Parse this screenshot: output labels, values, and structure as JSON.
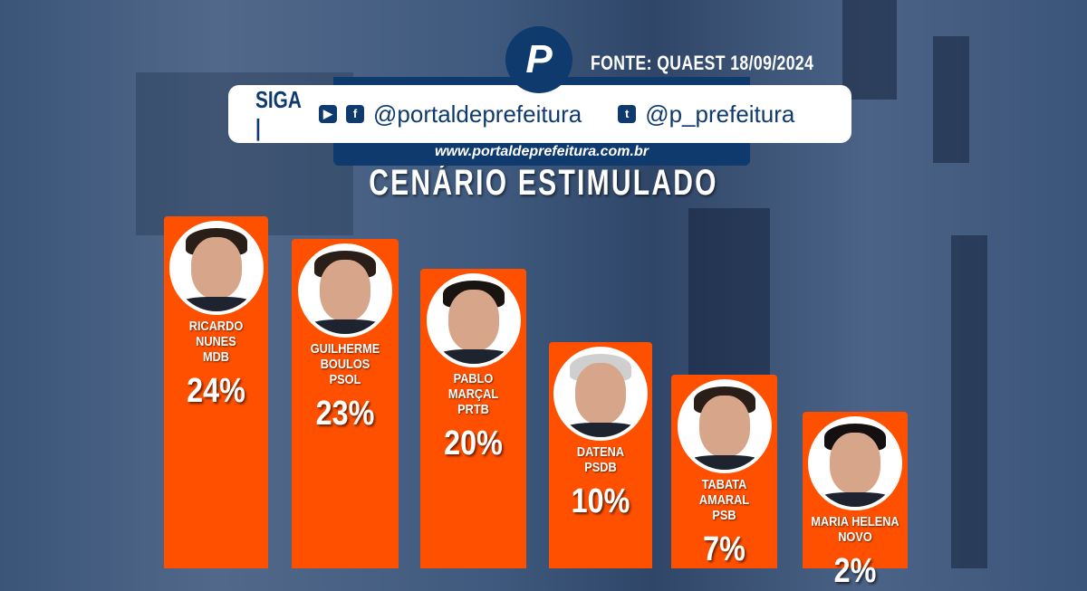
{
  "header": {
    "logo_letter": "P",
    "source": "FONTE: QUAEST 18/09/2024",
    "follow_label": "SIGA |",
    "youtube_icon": "youtube-icon",
    "facebook_icon": "facebook-icon",
    "twitter_icon": "twitter-icon",
    "handle_main": "@portaldeprefeitura",
    "handle_twitter": "@p_prefeitura",
    "website": "www.portaldeprefeitura.com.br"
  },
  "chart_data": {
    "type": "bar",
    "title": "CENÁRIO ESTIMULADO",
    "bar_color": "#ff5000",
    "unit": "%",
    "categories": [
      "RICARDO NUNES",
      "GUILHERME BOULOS",
      "PABLO MARÇAL",
      "DATENA",
      "TABATA AMARAL",
      "MARIA HELENA"
    ],
    "parties": [
      "MDB",
      "PSOL",
      "PRTB",
      "PSDB",
      "PSB",
      "NOVO"
    ],
    "values": [
      24,
      23,
      20,
      10,
      7,
      2
    ],
    "labels": [
      "24%",
      "23%",
      "20%",
      "10%",
      "7%",
      "2%"
    ]
  }
}
